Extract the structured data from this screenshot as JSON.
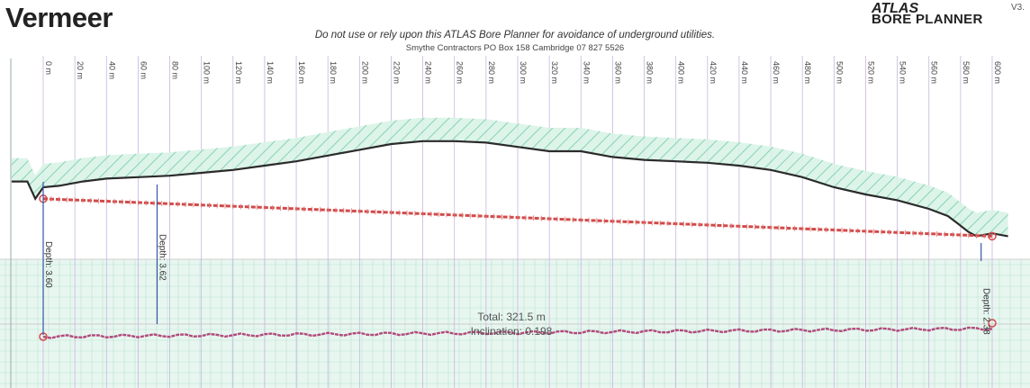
{
  "header": {
    "brand": "Vermeer",
    "logo_line1": "ATLAS",
    "logo_line2": "BORE PLANNER",
    "version": "V3.",
    "warning": "Do not use or rely upon this ATLAS Bore Planner for avoidance of underground utilities.",
    "contractor": "Smythe Contractors   PO Box 158  Cambridge   07 827 5526"
  },
  "colors": {
    "ground": "#2b2b2b",
    "bore": "#d24a4a",
    "hatch_fill": "#d9f3e6",
    "hatch_line": "#7ccfae",
    "grid": "#c8b6e0",
    "depth_line": "#3355aa"
  },
  "chart_data": {
    "type": "line",
    "x_unit": "m",
    "station_labels": [
      "0 m",
      "20 m",
      "40 m",
      "60 m",
      "80 m",
      "100 m",
      "120 m",
      "140 m",
      "160 m",
      "180 m",
      "200 m",
      "220 m",
      "240 m",
      "260 m",
      "280 m",
      "300 m",
      "320 m",
      "340 m",
      "360 m",
      "380 m",
      "400 m",
      "420 m",
      "440 m",
      "460 m",
      "480 m",
      "500 m",
      "520 m",
      "540 m",
      "560 m",
      "580 m",
      "600 m"
    ],
    "stations": [
      0,
      20,
      40,
      60,
      80,
      100,
      120,
      140,
      160,
      180,
      200,
      220,
      240,
      260,
      280,
      300,
      320,
      340,
      360,
      380,
      400,
      420,
      440,
      460,
      480,
      500,
      520,
      540,
      560,
      580,
      600
    ],
    "ground_profile": {
      "x": [
        -20,
        -10,
        -5,
        0,
        10,
        25,
        40,
        60,
        80,
        100,
        120,
        140,
        160,
        180,
        200,
        220,
        240,
        260,
        280,
        300,
        320,
        340,
        360,
        380,
        400,
        420,
        440,
        460,
        480,
        500,
        520,
        540,
        560,
        572,
        578,
        585,
        590,
        600,
        610
      ],
      "y": [
        -0.3,
        -0.3,
        -0.9,
        -0.5,
        -0.45,
        -0.3,
        -0.2,
        -0.15,
        -0.1,
        0.0,
        0.1,
        0.25,
        0.4,
        0.6,
        0.8,
        1.0,
        1.1,
        1.1,
        1.05,
        0.9,
        0.75,
        0.75,
        0.55,
        0.45,
        0.4,
        0.35,
        0.25,
        0.1,
        -0.15,
        -0.5,
        -0.75,
        -0.95,
        -1.25,
        -1.5,
        -1.75,
        -2.05,
        -2.2,
        -2.1,
        -2.2
      ]
    },
    "bore_path": {
      "x": [
        0,
        600
      ],
      "y": [
        -0.9,
        -2.2
      ]
    },
    "depth_markers": [
      {
        "label": "Depth: 3.60",
        "x": 0
      },
      {
        "label": "Depth: 3.62",
        "x": 72
      },
      {
        "label": "Depth: 2.38",
        "x": 593
      }
    ],
    "total_length": "Total: 321.5 m",
    "total_sublabel": "Inclination: 0.198"
  }
}
